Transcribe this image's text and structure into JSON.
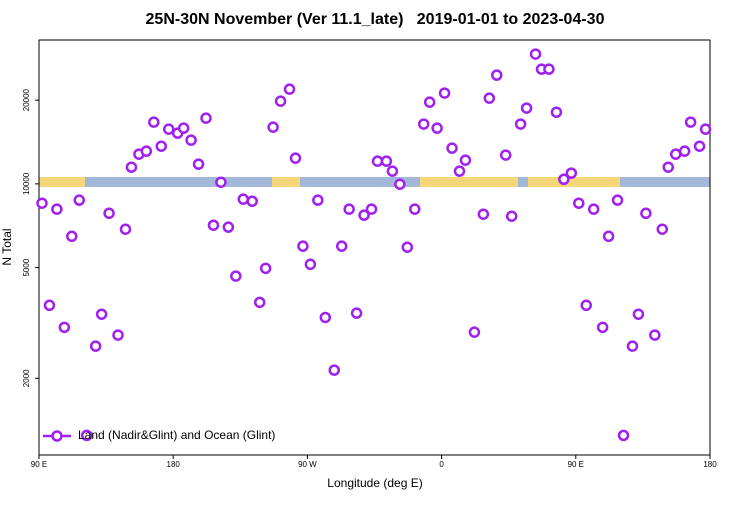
{
  "chart_data": {
    "type": "scatter",
    "title": "25N-30N November (Ver 11.1_late)   2019-01-01 to 2023-04-30",
    "x_label": "Longitude (deg E)",
    "y_label": "N Total",
    "xlim": [
      90,
      540
    ],
    "ylim": [
      1060,
      32900
    ],
    "y_scale": "log",
    "xticks": [
      {
        "value": 90,
        "label": "90 E"
      },
      180,
      {
        "value": 270,
        "label": "90 W"
      },
      {
        "value": 360,
        "label": "0"
      },
      {
        "value": 450,
        "label": "90 E"
      },
      {
        "value": 540,
        "label": "180"
      }
    ],
    "yticks": [
      2000,
      5000,
      10000,
      20000
    ],
    "legend": "lower left",
    "series": [
      {
        "name": "Land (Nadir&Glint) and Ocean (Glint)",
        "color": "#a020f0",
        "x": [
          92,
          97,
          102,
          107,
          112,
          117,
          122,
          128,
          132,
          137,
          143,
          148,
          152,
          157,
          162,
          167,
          172,
          177,
          183,
          187,
          192,
          197,
          202,
          207,
          212,
          217,
          222,
          227,
          233,
          238,
          242,
          247,
          252,
          258,
          262,
          267,
          272,
          277,
          282,
          288,
          293,
          298,
          303,
          308,
          313,
          317,
          323,
          327,
          332,
          337,
          342,
          348,
          352,
          357,
          362,
          367,
          372,
          376,
          382,
          388,
          392,
          397,
          403,
          407,
          413,
          417,
          423,
          427,
          432,
          437,
          442,
          447,
          452,
          457,
          462,
          468,
          472,
          478,
          482,
          488,
          492,
          497,
          503,
          508,
          512,
          517,
          523,
          527,
          533,
          537
        ],
        "values": [
          8520,
          3660,
          8110,
          3050,
          6480,
          8740,
          1247,
          2610,
          3400,
          7840,
          2860,
          6870,
          11480,
          12790,
          13110,
          16670,
          13660,
          15730,
          15220,
          15860,
          14360,
          11770,
          17230,
          7100,
          10140,
          6990,
          4660,
          8810,
          8660,
          3750,
          4970,
          15990,
          19830,
          21900,
          12370,
          5970,
          5140,
          8740,
          3310,
          2140,
          5970,
          8110,
          3430,
          7720,
          8110,
          12070,
          12070,
          11110,
          9970,
          5920,
          8110,
          16400,
          19670,
          15860,
          21200,
          13440,
          11110,
          12170,
          2930,
          7780,
          20330,
          24600,
          12690,
          7650,
          16400,
          18720,
          29280,
          25850,
          25850,
          18100,
          10390,
          10930,
          8520,
          3660,
          8110,
          3050,
          6480,
          8740,
          1247,
          2610,
          3400,
          7840,
          2860,
          6870,
          11480,
          12790,
          13110,
          16670,
          13660,
          15730
        ]
      }
    ]
  }
}
